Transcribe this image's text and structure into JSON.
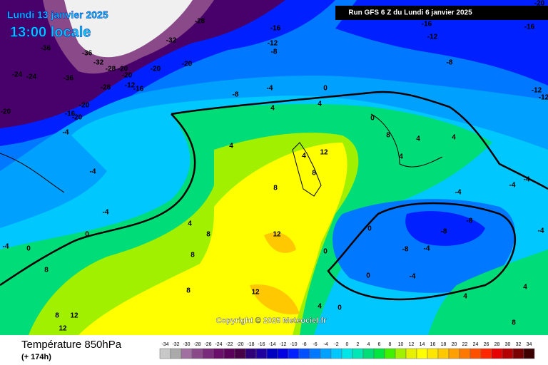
{
  "header": {
    "date": "Lundi 13 janvier 2025",
    "time": "13:00 locale",
    "run": "Run GFS 6 Z du Lundi 6 janvier 2025"
  },
  "footer": {
    "title": "Température 850hPa",
    "lead": "(+ 174h)",
    "copyright": "Copyright © 2025 Meteociel.fr"
  },
  "legend": {
    "values": [
      -34,
      -32,
      -30,
      -28,
      -26,
      -24,
      -22,
      -20,
      -18,
      -16,
      -14,
      -12,
      -10,
      -8,
      -6,
      -4,
      -2,
      0,
      2,
      4,
      6,
      8,
      10,
      12,
      14,
      16,
      18,
      20,
      22,
      24,
      26,
      28,
      30,
      32,
      34
    ],
    "colors": [
      "#c8c8c8",
      "#aaaaaa",
      "#a070a0",
      "#8a4a8a",
      "#7a2a7a",
      "#6a106a",
      "#5a005a",
      "#480048",
      "#30007a",
      "#2000a0",
      "#0000c0",
      "#0000e0",
      "#0020ff",
      "#0050ff",
      "#0078ff",
      "#00a0ff",
      "#00c8ff",
      "#00e6e6",
      "#00e6b4",
      "#00dc78",
      "#00e640",
      "#40f000",
      "#a0f000",
      "#e6f000",
      "#ffff00",
      "#ffe600",
      "#ffc800",
      "#ffa000",
      "#ff7800",
      "#ff5000",
      "#ff2800",
      "#e60000",
      "#b40000",
      "#780000",
      "#3c0000"
    ]
  },
  "contour_labels": [
    -28,
    -32,
    -36,
    -36,
    -24,
    -24,
    -36,
    -32,
    -28,
    -20,
    -20,
    -20,
    -20,
    -28,
    -12,
    -16,
    -20,
    -20,
    -16,
    -20,
    -4,
    -16,
    -12,
    -8,
    -16,
    -12,
    -16,
    -20,
    -8,
    -12,
    -12,
    -8,
    -4,
    0,
    4,
    4,
    0,
    8,
    4,
    4,
    4,
    4,
    12,
    8,
    4,
    -4,
    -4,
    8,
    4,
    8,
    0,
    0,
    -4,
    8,
    12,
    0,
    0,
    -8,
    -8,
    -8,
    -4,
    0,
    -4,
    -4,
    -4,
    -4,
    -4,
    4,
    8,
    8,
    12,
    8,
    12,
    12,
    0,
    4,
    4,
    8
  ]
}
